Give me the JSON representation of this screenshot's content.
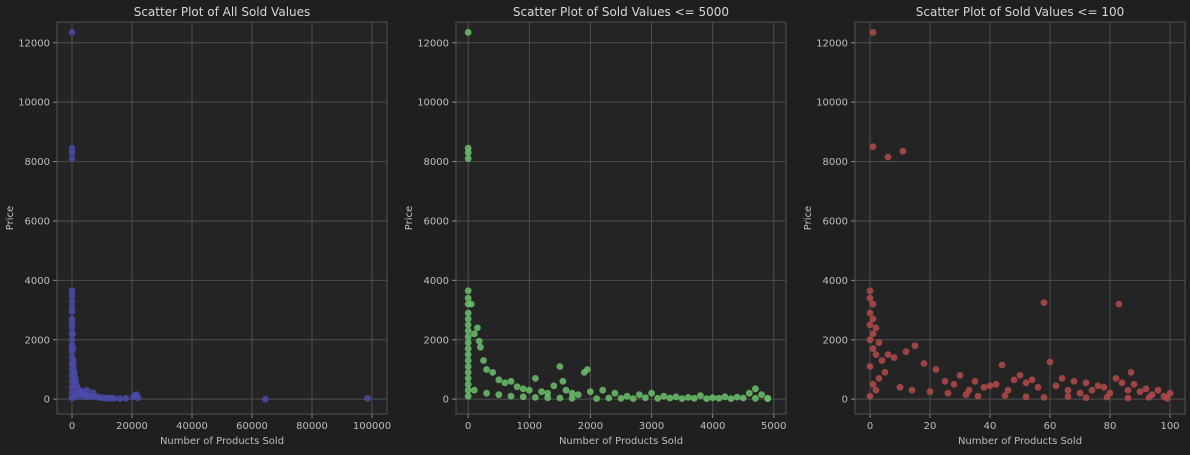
{
  "chart_data": [
    {
      "type": "scatter",
      "title": "Scatter Plot of All Sold Values",
      "xlabel": "Number of Products Sold",
      "ylabel": "Price",
      "xlim": [
        -5000,
        105000
      ],
      "ylim": [
        -500,
        12700
      ],
      "xticks": [
        0,
        20000,
        40000,
        60000,
        80000,
        100000
      ],
      "yticks": [
        0,
        2000,
        4000,
        6000,
        8000,
        10000,
        12000
      ],
      "grid": true,
      "color": "#4a4aa8",
      "points": [
        [
          0,
          12350
        ],
        [
          0,
          8450
        ],
        [
          0,
          8300
        ],
        [
          0,
          8100
        ],
        [
          0,
          3650
        ],
        [
          0,
          3500
        ],
        [
          0,
          3300
        ],
        [
          0,
          3100
        ],
        [
          0,
          2950
        ],
        [
          0,
          2700
        ],
        [
          0,
          2550
        ],
        [
          0,
          2400
        ],
        [
          0,
          2200
        ],
        [
          0,
          2000
        ],
        [
          0,
          1800
        ],
        [
          0,
          1600
        ],
        [
          0,
          1400
        ],
        [
          0,
          1200
        ],
        [
          0,
          1000
        ],
        [
          0,
          800
        ],
        [
          0,
          600
        ],
        [
          0,
          400
        ],
        [
          0,
          200
        ],
        [
          0,
          50
        ],
        [
          200,
          2200
        ],
        [
          300,
          1700
        ],
        [
          400,
          1300
        ],
        [
          500,
          1150
        ],
        [
          600,
          950
        ],
        [
          800,
          850
        ],
        [
          1000,
          700
        ],
        [
          1200,
          600
        ],
        [
          1500,
          450
        ],
        [
          2000,
          350
        ],
        [
          2500,
          250
        ],
        [
          3000,
          200
        ],
        [
          4000,
          150
        ],
        [
          5000,
          120
        ],
        [
          6000,
          100
        ],
        [
          7000,
          80
        ],
        [
          8000,
          90
        ],
        [
          9000,
          60
        ],
        [
          10000,
          50
        ],
        [
          11000,
          40
        ],
        [
          12000,
          30
        ],
        [
          13000,
          40
        ],
        [
          14000,
          30
        ],
        [
          16000,
          20
        ],
        [
          18000,
          30
        ],
        [
          20500,
          80
        ],
        [
          21000,
          120
        ],
        [
          21500,
          150
        ],
        [
          22000,
          50
        ],
        [
          64500,
          0
        ],
        [
          98500,
          30
        ],
        [
          5000,
          300
        ],
        [
          3500,
          250
        ],
        [
          7000,
          220
        ],
        [
          1500,
          200
        ],
        [
          2500,
          100
        ],
        [
          4500,
          80
        ],
        [
          800,
          120
        ],
        [
          100,
          50
        ],
        [
          300,
          60
        ],
        [
          600,
          70
        ]
      ]
    },
    {
      "type": "scatter",
      "title": "Scatter Plot of Sold Values <= 5000",
      "xlabel": "Number of Products Sold",
      "ylabel": "Price",
      "xlim": [
        -200,
        5200
      ],
      "ylim": [
        -500,
        12700
      ],
      "xticks": [
        0,
        1000,
        2000,
        3000,
        4000,
        5000
      ],
      "yticks": [
        0,
        2000,
        4000,
        6000,
        8000,
        10000,
        12000
      ],
      "grid": true,
      "color": "#6cbf6c",
      "points": [
        [
          0,
          12350
        ],
        [
          0,
          8450
        ],
        [
          0,
          8300
        ],
        [
          0,
          8100
        ],
        [
          0,
          3650
        ],
        [
          0,
          3400
        ],
        [
          0,
          3200
        ],
        [
          0,
          2900
        ],
        [
          0,
          2700
        ],
        [
          0,
          2500
        ],
        [
          0,
          2300
        ],
        [
          0,
          2100
        ],
        [
          0,
          1900
        ],
        [
          0,
          1700
        ],
        [
          0,
          1500
        ],
        [
          0,
          1300
        ],
        [
          0,
          1100
        ],
        [
          0,
          900
        ],
        [
          0,
          700
        ],
        [
          0,
          500
        ],
        [
          0,
          300
        ],
        [
          0,
          100
        ],
        [
          50,
          3200
        ],
        [
          100,
          2200
        ],
        [
          150,
          2400
        ],
        [
          180,
          1950
        ],
        [
          200,
          1750
        ],
        [
          250,
          1300
        ],
        [
          300,
          1000
        ],
        [
          400,
          900
        ],
        [
          500,
          650
        ],
        [
          600,
          550
        ],
        [
          700,
          600
        ],
        [
          800,
          420
        ],
        [
          900,
          350
        ],
        [
          1000,
          300
        ],
        [
          1100,
          700
        ],
        [
          1200,
          250
        ],
        [
          1300,
          200
        ],
        [
          1400,
          450
        ],
        [
          1500,
          1100
        ],
        [
          1550,
          600
        ],
        [
          1600,
          300
        ],
        [
          1700,
          200
        ],
        [
          1800,
          150
        ],
        [
          1900,
          900
        ],
        [
          1950,
          1000
        ],
        [
          2000,
          250
        ],
        [
          2200,
          300
        ],
        [
          2400,
          200
        ],
        [
          2600,
          100
        ],
        [
          2800,
          150
        ],
        [
          3000,
          200
        ],
        [
          3200,
          100
        ],
        [
          3400,
          80
        ],
        [
          3600,
          60
        ],
        [
          3800,
          120
        ],
        [
          4000,
          50
        ],
        [
          4200,
          80
        ],
        [
          4400,
          70
        ],
        [
          4600,
          200
        ],
        [
          4700,
          350
        ],
        [
          4800,
          150
        ],
        [
          4900,
          30
        ],
        [
          100,
          300
        ],
        [
          300,
          200
        ],
        [
          500,
          150
        ],
        [
          700,
          100
        ],
        [
          900,
          80
        ],
        [
          1100,
          60
        ],
        [
          1300,
          50
        ],
        [
          1500,
          40
        ],
        [
          1700,
          30
        ],
        [
          2100,
          20
        ],
        [
          2300,
          40
        ],
        [
          2500,
          30
        ],
        [
          2700,
          20
        ],
        [
          2900,
          50
        ],
        [
          3100,
          30
        ],
        [
          3300,
          40
        ],
        [
          3500,
          20
        ],
        [
          3700,
          30
        ],
        [
          3900,
          20
        ],
        [
          4100,
          30
        ],
        [
          4300,
          20
        ],
        [
          4500,
          40
        ],
        [
          4700,
          30
        ],
        [
          4900,
          20
        ]
      ]
    },
    {
      "type": "scatter",
      "title": "Scatter Plot of Sold Values <= 100",
      "xlabel": "Number of Products Sold",
      "ylabel": "Price",
      "xlim": [
        -5,
        105
      ],
      "ylim": [
        -500,
        12700
      ],
      "xticks": [
        0,
        20,
        40,
        60,
        80,
        100
      ],
      "yticks": [
        0,
        2000,
        4000,
        6000,
        8000,
        10000,
        12000
      ],
      "grid": true,
      "color": "#b34a4a",
      "points": [
        [
          1,
          12350
        ],
        [
          1,
          8500
        ],
        [
          6,
          8150
        ],
        [
          11,
          8350
        ],
        [
          0,
          3650
        ],
        [
          0,
          3400
        ],
        [
          1,
          3200
        ],
        [
          0,
          2900
        ],
        [
          1,
          2700
        ],
        [
          0,
          2500
        ],
        [
          2,
          2400
        ],
        [
          1,
          2200
        ],
        [
          0,
          2000
        ],
        [
          3,
          1900
        ],
        [
          1,
          1700
        ],
        [
          2,
          1500
        ],
        [
          4,
          1300
        ],
        [
          0,
          1100
        ],
        [
          5,
          900
        ],
        [
          3,
          700
        ],
        [
          1,
          500
        ],
        [
          2,
          300
        ],
        [
          0,
          100
        ],
        [
          6,
          1500
        ],
        [
          8,
          1400
        ],
        [
          12,
          1600
        ],
        [
          15,
          1800
        ],
        [
          18,
          1200
        ],
        [
          22,
          1000
        ],
        [
          25,
          600
        ],
        [
          28,
          500
        ],
        [
          30,
          800
        ],
        [
          33,
          300
        ],
        [
          35,
          600
        ],
        [
          38,
          400
        ],
        [
          40,
          450
        ],
        [
          42,
          500
        ],
        [
          44,
          1150
        ],
        [
          46,
          300
        ],
        [
          48,
          650
        ],
        [
          50,
          800
        ],
        [
          52,
          550
        ],
        [
          54,
          650
        ],
        [
          56,
          400
        ],
        [
          58,
          3250
        ],
        [
          60,
          1250
        ],
        [
          62,
          450
        ],
        [
          64,
          700
        ],
        [
          66,
          300
        ],
        [
          68,
          600
        ],
        [
          70,
          200
        ],
        [
          72,
          550
        ],
        [
          74,
          300
        ],
        [
          76,
          450
        ],
        [
          78,
          400
        ],
        [
          80,
          200
        ],
        [
          82,
          700
        ],
        [
          83,
          3200
        ],
        [
          84,
          550
        ],
        [
          86,
          300
        ],
        [
          87,
          900
        ],
        [
          88,
          500
        ],
        [
          90,
          250
        ],
        [
          92,
          350
        ],
        [
          94,
          150
        ],
        [
          96,
          300
        ],
        [
          98,
          100
        ],
        [
          100,
          200
        ],
        [
          10,
          400
        ],
        [
          14,
          300
        ],
        [
          20,
          250
        ],
        [
          26,
          200
        ],
        [
          32,
          150
        ],
        [
          36,
          100
        ],
        [
          45,
          120
        ],
        [
          52,
          80
        ],
        [
          58,
          60
        ],
        [
          66,
          90
        ],
        [
          72,
          50
        ],
        [
          79,
          70
        ],
        [
          86,
          40
        ],
        [
          93,
          60
        ],
        [
          99,
          30
        ]
      ]
    }
  ]
}
